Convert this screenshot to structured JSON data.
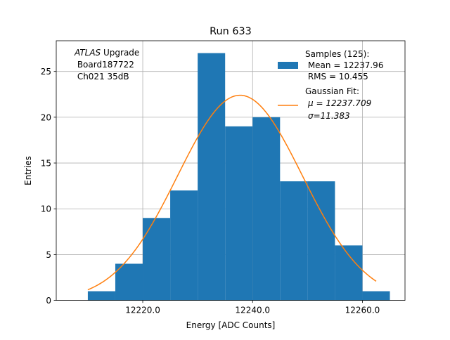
{
  "chart_data": {
    "type": "bar",
    "title": "Run 633",
    "xlabel": "Energy [ADC Counts]",
    "ylabel": "Entries",
    "xlim": [
      12204.25,
      12267.75
    ],
    "ylim": [
      0,
      28.35
    ],
    "grid": true,
    "bins": [
      {
        "x0": 12210,
        "x1": 12215,
        "count": 1
      },
      {
        "x0": 12215,
        "x1": 12220,
        "count": 4
      },
      {
        "x0": 12220,
        "x1": 12225,
        "count": 9
      },
      {
        "x0": 12225,
        "x1": 12230,
        "count": 12
      },
      {
        "x0": 12230,
        "x1": 12235,
        "count": 27
      },
      {
        "x0": 12235,
        "x1": 12240,
        "count": 19
      },
      {
        "x0": 12240,
        "x1": 12245,
        "count": 20
      },
      {
        "x0": 12245,
        "x1": 12250,
        "count": 13
      },
      {
        "x0": 12250,
        "x1": 12255,
        "count": 13
      },
      {
        "x0": 12255,
        "x1": 12260,
        "count": 6
      },
      {
        "x0": 12260,
        "x1": 12265,
        "count": 1
      }
    ],
    "xticks": [
      12220,
      12240,
      12260
    ],
    "xtick_labels": [
      "12220.0",
      "12240.0",
      "12260.0"
    ],
    "yticks": [
      0,
      5,
      10,
      15,
      20,
      25
    ],
    "ytick_labels": [
      "0",
      "5",
      "10",
      "15",
      "20",
      "25"
    ],
    "fit": {
      "mu": 12237.709,
      "sigma": 11.383,
      "peak": 22.4,
      "x_range": [
        12210,
        12262.5
      ]
    },
    "annotation": {
      "line1_italic": "ATLAS",
      "line1_rest": " Upgrade",
      "line2": " Board187722",
      "line3": " Ch021 35dB"
    },
    "legend": {
      "placement": "upper right",
      "hist_entry": [
        "Samples (125):",
        " Mean = 12237.96",
        " RMS = 10.455"
      ],
      "fit_entry": [
        "Gaussian Fit:",
        "μ = 12237.709",
        "σ=11.383"
      ]
    },
    "colors": {
      "bar": "#1f77b4",
      "fit_line": "#ff7f0e",
      "grid": "#b0b0b0"
    }
  }
}
